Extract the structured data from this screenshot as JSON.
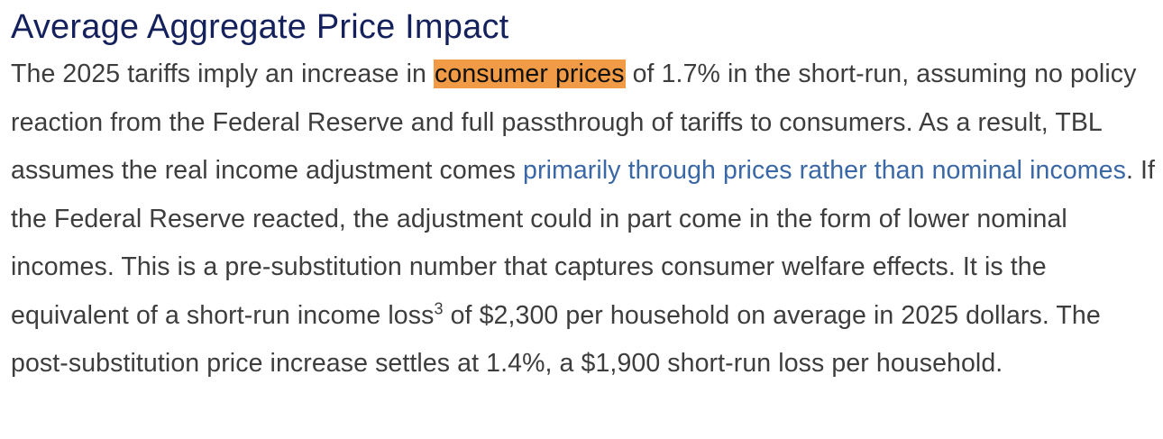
{
  "heading": "Average Aggregate Price Impact",
  "paragraph": {
    "seg1": "The 2025 tariffs imply an increase in ",
    "highlight": "consumer prices",
    "seg2": " of 1.7% in the short-run, assuming no policy reaction from the Federal Reserve and full passthrough of tariffs to consumers. As a result, TBL assumes the real income adjustment comes ",
    "link": "primarily through prices rather than nominal incomes",
    "seg3": ". If the Federal Reserve reacted, the adjustment could in part come in the form of lower nominal incomes. This is a pre-substitution number that captures consumer welfare effects. It is the equivalent of a short-run income loss",
    "footnote": "3",
    "seg4": " of $2,300 per household on average in 2025 dollars. The post-substitution price increase settles at 1.4%, a $1,900 short-run loss per household."
  },
  "colors": {
    "heading": "#14215c",
    "text": "#3d3d3d",
    "highlight": "#f19b46",
    "link": "#3a68a6"
  }
}
